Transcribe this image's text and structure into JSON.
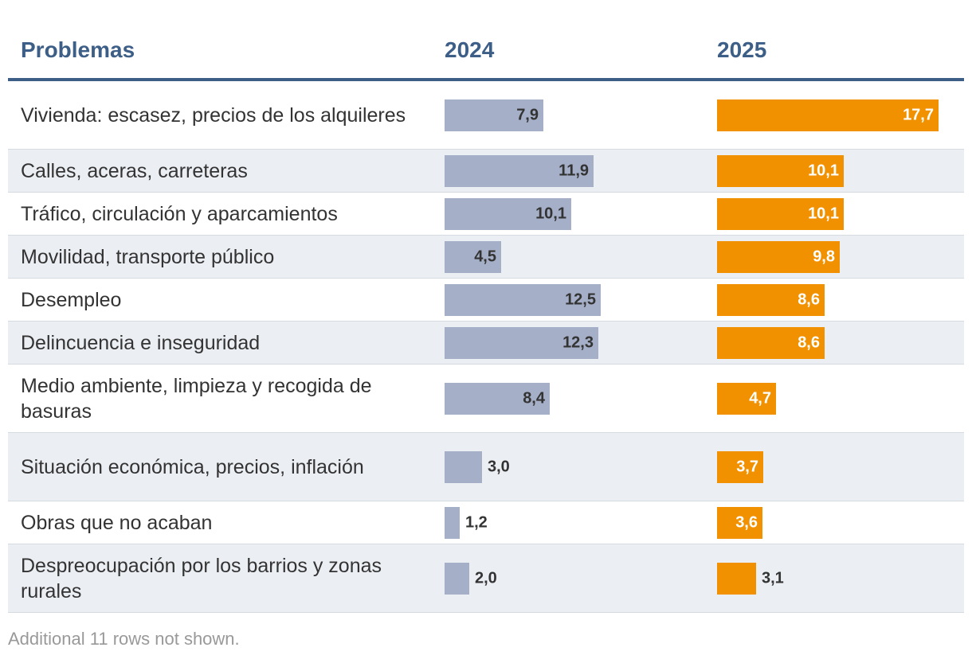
{
  "header": {
    "problems": "Problemas",
    "y2024": "2024",
    "y2025": "2025"
  },
  "colors": {
    "bar2024": "#a5b0c8",
    "bar2025": "#f29100",
    "header": "#3d5f87"
  },
  "chart_data": {
    "type": "bar",
    "title": "",
    "categories": [
      "Vivienda: escasez, precios de los alquileres",
      "Calles, aceras, carreteras",
      "Tráfico, circulación y aparcamientos",
      "Movilidad, transporte público",
      "Desempleo",
      "Delincuencia e inseguridad",
      "Medio ambiente, limpieza y recogida de basuras",
      "Situación económica, precios, inflación",
      "Obras que no acaban",
      "Despreocupación por los barrios y zonas rurales"
    ],
    "series": [
      {
        "name": "2024",
        "values": [
          7.9,
          11.9,
          10.1,
          4.5,
          12.5,
          12.3,
          8.4,
          3.0,
          1.2,
          2.0
        ],
        "labels": [
          "7,9",
          "11,9",
          "10,1",
          "4,5",
          "12,5",
          "12,3",
          "8,4",
          "3,0",
          "1,2",
          "2,0"
        ]
      },
      {
        "name": "2025",
        "values": [
          17.7,
          10.1,
          10.1,
          9.8,
          8.6,
          8.6,
          4.7,
          3.7,
          3.6,
          3.1
        ],
        "labels": [
          "17,7",
          "10,1",
          "10,1",
          "9,8",
          "8,6",
          "8,6",
          "4,7",
          "3,7",
          "3,6",
          "3,1"
        ]
      }
    ],
    "xlim": [
      0,
      17.7
    ]
  },
  "footnote": "Additional 11 rows not shown."
}
